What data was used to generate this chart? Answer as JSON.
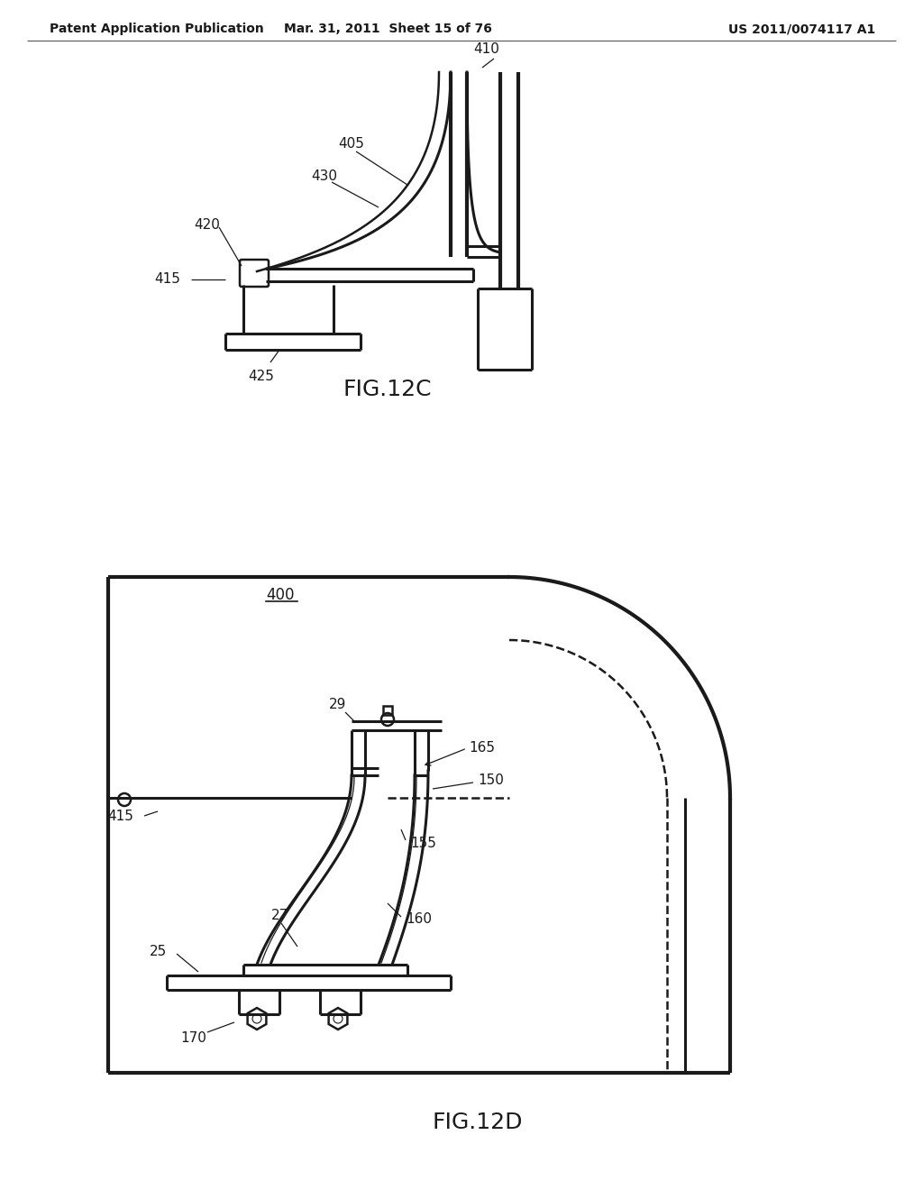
{
  "background_color": "#ffffff",
  "header_left": "Patent Application Publication",
  "header_mid": "Mar. 31, 2011  Sheet 15 of 76",
  "header_right": "US 2011/0074117 A1",
  "fig12c_label": "FIG.12C",
  "fig12d_label": "FIG.12D",
  "line_color": "#1a1a1a",
  "line_width": 1.8,
  "annotation_fontsize": 11,
  "header_fontsize": 10,
  "fig_label_fontsize": 18
}
